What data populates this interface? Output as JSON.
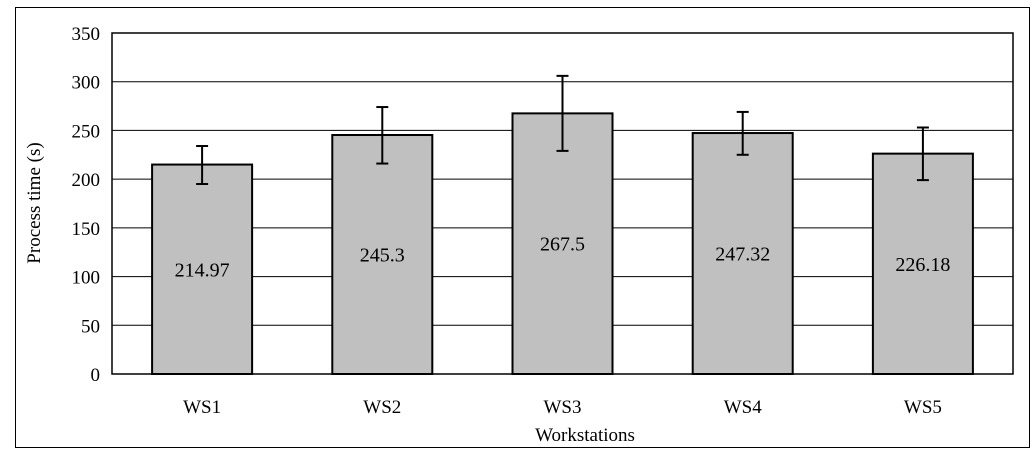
{
  "chart_data": {
    "type": "bar",
    "categories": [
      "WS1",
      "WS2",
      "WS3",
      "WS4",
      "WS5"
    ],
    "values": [
      214.97,
      245.3,
      267.5,
      247.32,
      226.18
    ],
    "error_bars": [
      {
        "low": 195,
        "high": 234
      },
      {
        "low": 216,
        "high": 274
      },
      {
        "low": 229,
        "high": 306
      },
      {
        "low": 225,
        "high": 269
      },
      {
        "low": 199,
        "high": 253
      }
    ],
    "data_labels": [
      "214.97",
      "245.3",
      "267.5",
      "247.32",
      "226.18"
    ],
    "xlabel": "Workstations",
    "ylabel": "Process time (s)",
    "ylim": [
      0,
      350
    ],
    "yticks": [
      0,
      50,
      100,
      150,
      200,
      250,
      300,
      350
    ],
    "ytick_labels": [
      "0",
      "50",
      "100",
      "150",
      "200",
      "250",
      "300",
      "350"
    ],
    "grid": true,
    "bar_color": "#c0c0c0",
    "edge_color": "#000000"
  }
}
